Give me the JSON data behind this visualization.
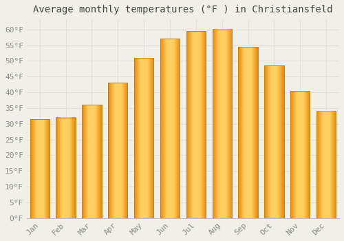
{
  "title": "Average monthly temperatures (°F ) in Christiansfeld",
  "months": [
    "Jan",
    "Feb",
    "Mar",
    "Apr",
    "May",
    "Jun",
    "Jul",
    "Aug",
    "Sep",
    "Oct",
    "Nov",
    "Dec"
  ],
  "values": [
    31.5,
    32.0,
    36.0,
    43.0,
    51.0,
    57.0,
    59.5,
    60.0,
    54.5,
    48.5,
    40.5,
    34.0
  ],
  "bar_color": "#FFA500",
  "bar_edge_color": "#CC8800",
  "ylim": [
    0,
    63
  ],
  "yticks": [
    0,
    5,
    10,
    15,
    20,
    25,
    30,
    35,
    40,
    45,
    50,
    55,
    60
  ],
  "ytick_labels": [
    "0°F",
    "5°F",
    "10°F",
    "15°F",
    "20°F",
    "25°F",
    "30°F",
    "35°F",
    "40°F",
    "45°F",
    "50°F",
    "55°F",
    "60°F"
  ],
  "background_color": "#f0f0e8",
  "grid_color": "#e0e0d8",
  "title_fontsize": 10,
  "tick_fontsize": 8,
  "tick_color": "#888888",
  "title_color": "#444444",
  "bar_width": 0.75
}
